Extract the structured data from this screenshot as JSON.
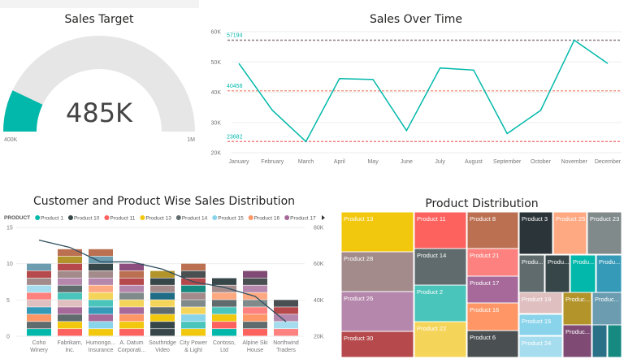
{
  "gauge": {
    "title": "Sales Target",
    "value_label": "485K",
    "min_label": "400K",
    "max_label": "1M",
    "value": 485000,
    "min": 400000,
    "max": 1000000,
    "fill_color": "#01B8AA",
    "track_color": "#E6E6E6"
  },
  "chart_data": [
    {
      "type": "line",
      "title": "Sales Over Time",
      "categories": [
        "January",
        "February",
        "March",
        "April",
        "May",
        "June",
        "July",
        "August",
        "September",
        "October",
        "November",
        "December"
      ],
      "values": [
        49500,
        34000,
        23682,
        44500,
        44200,
        27300,
        48000,
        47300,
        26300,
        34000,
        57194,
        49500
      ],
      "ylim": [
        20000,
        60000
      ],
      "yticks": [
        "20K",
        "30K",
        "40K",
        "50K",
        "60K"
      ],
      "line_color": "#01B8AA",
      "reference_lines": [
        {
          "label": "57194",
          "value": 57194,
          "color": "#8E7E87"
        },
        {
          "label": "40458",
          "value": 40458,
          "color": "#F4A08C"
        },
        {
          "label": "23682",
          "value": 23682,
          "color": "#F08080"
        }
      ],
      "grid": true
    },
    {
      "type": "bar",
      "stacked": true,
      "title": "Customer and Product Wise Sales Distribution",
      "legend_title": "PRODUCT",
      "legend": [
        {
          "name": "Product 1",
          "color": "#01B8AA"
        },
        {
          "name": "Product 10",
          "color": "#374649"
        },
        {
          "name": "Product 11",
          "color": "#FD625E"
        },
        {
          "name": "Product 13",
          "color": "#F2C80F"
        },
        {
          "name": "Product 14",
          "color": "#5F6B6D"
        },
        {
          "name": "Product 15",
          "color": "#8AD4EB"
        },
        {
          "name": "Product 16",
          "color": "#FE9666"
        },
        {
          "name": "Product 17",
          "color": "#A66999"
        }
      ],
      "legend_position": "top",
      "categories": [
        "Coho Winery",
        "Fabrikam, Inc.",
        "Humongo... Insurance",
        "A. Datum Corporati...",
        "Southridge Video",
        "City Power & Light",
        "Contoso, Ltd",
        "Alpine Ski House",
        "Northwind Traders"
      ],
      "category_lines": [
        [
          "Coho",
          "Winery"
        ],
        [
          "Fabrikam,",
          "Inc."
        ],
        [
          "Humongo...",
          "Insurance"
        ],
        [
          "A. Datum",
          "Corporati..."
        ],
        [
          "Southridge",
          "Video"
        ],
        [
          "City Power",
          "& Light"
        ],
        [
          "Contoso,",
          "Ltd"
        ],
        [
          "Alpine Ski",
          "House"
        ],
        [
          "Northwind",
          "Traders"
        ]
      ],
      "totals": [
        10,
        12,
        12,
        10,
        9,
        10,
        8,
        9,
        5
      ],
      "segments": [
        [
          "#01B8AA",
          "#5F6B6D",
          "#FE9666",
          "#3599B8",
          "#DFBFBF",
          "#FD817E",
          "#A6DDEE",
          "#A38B8B",
          "#B5494B",
          "#6B9CB0"
        ],
        [
          "#FD625E",
          "#F2C80F",
          "#5F6B6D",
          "#A66999",
          "#DFBFBF",
          "#4AC5BB",
          "#5F6B6D",
          "#B687AC",
          "#A38B8B",
          "#B5494B",
          "#B3942A",
          "#BC7052"
        ],
        [
          "#F2C80F",
          "#8AD4EB",
          "#A66999",
          "#3599B8",
          "#4AC5BB",
          "#F5D45A",
          "#FFA983",
          "#B687AC",
          "#A38B8B",
          "#374649",
          "#6B9CB0",
          "#BC7052"
        ],
        [
          "#FD625E",
          "#F2C80F",
          "#FE9666",
          "#A66999",
          "#F5D45A",
          "#808A8A",
          "#B687AC",
          "#B5494B",
          "#BC7052",
          "#8C4D7F"
        ],
        [
          "#374649",
          "#374649",
          "#F2C80F",
          "#5F6B6D",
          "#F5D45A",
          "#1F6C87",
          "#A38B8B",
          "#374649",
          "#B3942A"
        ],
        [
          "#F2C80F",
          "#4AC5BB",
          "#8AD4EB",
          "#F5D45A",
          "#808A8A",
          "#A38B8B",
          "#168980",
          "#B5494B",
          "#4A5052",
          "#BC7052"
        ],
        [
          "#01B8AA",
          "#FD625E",
          "#F2C80F",
          "#4AC5BB",
          "#5F6B6D",
          "#FFA983",
          "#A38B8B",
          "#374649"
        ],
        [
          "#FD625E",
          "#5F6B6D",
          "#FE9666",
          "#FD817E",
          "#808A8A",
          "#FFA983",
          "#B687AC",
          "#4A5052",
          "#7F4B75"
        ],
        [
          "#FD817E",
          "#A6DDEE",
          "#B687AC",
          "#B5494B",
          "#4A5052"
        ]
      ],
      "ylim": [
        0,
        15
      ],
      "yticks": [
        "0",
        "5",
        "10",
        "15"
      ],
      "y2lim": [
        20000,
        80000
      ],
      "y2ticks": [
        "20K",
        "40K",
        "60K",
        "80K"
      ],
      "line_values": [
        73000,
        69000,
        61000,
        61000,
        57000,
        50000,
        47000,
        42000,
        28000
      ],
      "line_color": "#2F4F5F"
    },
    {
      "type": "treemap",
      "title": "Product Distribution",
      "items": [
        {
          "name": "Product 13",
          "color": "#F2C80F"
        },
        {
          "name": "Product 28",
          "color": "#A38B8B"
        },
        {
          "name": "Product 26",
          "color": "#B687AC"
        },
        {
          "name": "Product 30",
          "color": "#B5494B"
        },
        {
          "name": "Product 11",
          "color": "#FD625E"
        },
        {
          "name": "Product 14",
          "color": "#5F6B6D"
        },
        {
          "name": "Product 2",
          "color": "#4AC5BB"
        },
        {
          "name": "Product 22",
          "color": "#F5D45A"
        },
        {
          "name": "Product 8",
          "color": "#BC7052"
        },
        {
          "name": "Product 21",
          "color": "#FD817E"
        },
        {
          "name": "Product 17",
          "color": "#A66999"
        },
        {
          "name": "Product 16",
          "color": "#FE9666"
        },
        {
          "name": "Product 6",
          "color": "#4A5052"
        },
        {
          "name": "Product 3",
          "color": "#2B3439"
        },
        {
          "name": "Product 25",
          "color": "#FFA983"
        },
        {
          "name": "Product 23",
          "color": "#808A8A"
        },
        {
          "name": "Produ...",
          "color": "#5F6B6D"
        },
        {
          "name": "Produ...",
          "color": "#374649"
        },
        {
          "name": "Produ...",
          "color": "#01B8AA"
        },
        {
          "name": "Produ...",
          "color": "#3599B8"
        },
        {
          "name": "Product 19",
          "color": "#DFBFBF"
        },
        {
          "name": "Product 15",
          "color": "#8AD4EB"
        },
        {
          "name": "Product 24",
          "color": "#A6DDEE"
        },
        {
          "name": "Produc...",
          "color": "#B3942A"
        },
        {
          "name": "Produc...",
          "color": "#7F4B75"
        },
        {
          "name": "Produc...",
          "color": "#6B9CB0"
        },
        {
          "name": "",
          "color": "#2A7188"
        },
        {
          "name": "",
          "color": "#168980"
        }
      ]
    }
  ]
}
